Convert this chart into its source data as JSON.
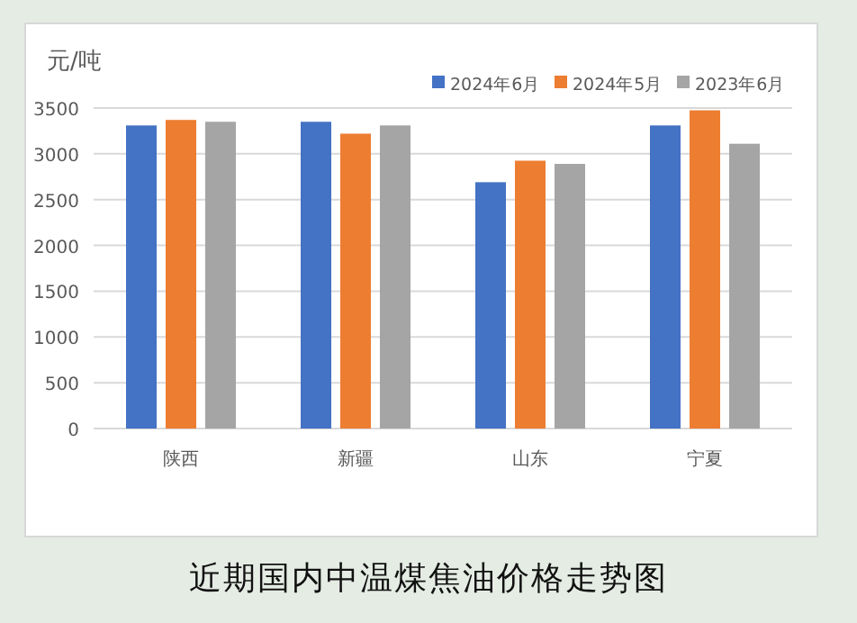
{
  "chart_data": {
    "type": "bar",
    "title": "近期国内中温煤焦油价格走势图",
    "ylabel": "元/吨",
    "categories": [
      "陕西",
      "新疆",
      "山东",
      "宁夏"
    ],
    "series": [
      {
        "name": "2024年6月",
        "color": "#4472c4",
        "values": [
          3310,
          3350,
          2690,
          3310
        ]
      },
      {
        "name": "2024年5月",
        "color": "#ed7d31",
        "values": [
          3370,
          3220,
          2925,
          3475
        ]
      },
      {
        "name": "2023年6月",
        "color": "#a5a5a5",
        "values": [
          3350,
          3310,
          2890,
          3110
        ]
      }
    ],
    "ylim": [
      0,
      3500
    ],
    "yticks": [
      0,
      500,
      1000,
      1500,
      2000,
      2500,
      3000,
      3500
    ],
    "grid": "y",
    "legend": "top right"
  }
}
